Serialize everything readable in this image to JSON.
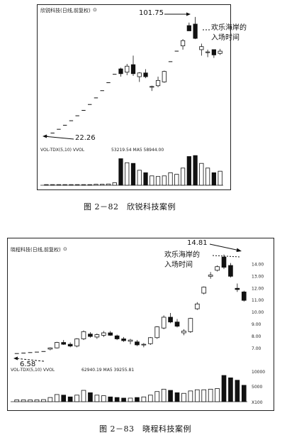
{
  "chart_data": [
    {
      "type": "candlestick",
      "title": "",
      "header": "欣锐科技(日线,前复权)",
      "indicator_label": "VOL-TDX(5,10) VVOL",
      "indicator_values": "53219.54 MA5 58944.00",
      "y_range": [
        20,
        105
      ],
      "vol_range": [
        0,
        100
      ],
      "annotations": {
        "low_label": "22.26",
        "high_label": "101.75",
        "entry_label_line1": "欢乐海岸的",
        "entry_label_line2": "入场时间"
      },
      "candles": [
        {
          "o": 22.3,
          "h": 22.3,
          "l": 22.3,
          "c": 22.3,
          "v": 2
        },
        {
          "o": 24.5,
          "h": 24.5,
          "l": 24.5,
          "c": 24.5,
          "v": 2
        },
        {
          "o": 27.0,
          "h": 27.0,
          "l": 27.0,
          "c": 27.0,
          "v": 2
        },
        {
          "o": 29.7,
          "h": 29.7,
          "l": 29.7,
          "c": 29.7,
          "v": 2
        },
        {
          "o": 32.7,
          "h": 32.7,
          "l": 32.7,
          "c": 32.7,
          "v": 2
        },
        {
          "o": 36.0,
          "h": 36.0,
          "l": 36.0,
          "c": 36.0,
          "v": 2
        },
        {
          "o": 39.6,
          "h": 39.6,
          "l": 39.6,
          "c": 39.6,
          "v": 2
        },
        {
          "o": 43.5,
          "h": 43.5,
          "l": 43.5,
          "c": 43.5,
          "v": 2
        },
        {
          "o": 47.9,
          "h": 47.9,
          "l": 47.9,
          "c": 47.9,
          "v": 3
        },
        {
          "o": 52.7,
          "h": 52.7,
          "l": 52.7,
          "c": 52.7,
          "v": 3
        },
        {
          "o": 58.0,
          "h": 58.0,
          "l": 58.0,
          "c": 58.0,
          "v": 4
        },
        {
          "o": 63.6,
          "h": 63.6,
          "l": 63.6,
          "c": 63.6,
          "v": 8
        },
        {
          "o": 67.2,
          "h": 68.0,
          "l": 62.0,
          "c": 64.0,
          "v": 85
        },
        {
          "o": 65.0,
          "h": 70.5,
          "l": 63.0,
          "c": 69.0,
          "v": 72
        },
        {
          "o": 70.0,
          "h": 76.0,
          "l": 62.5,
          "c": 64.0,
          "v": 70
        },
        {
          "o": 62.0,
          "h": 65.0,
          "l": 58.5,
          "c": 64.5,
          "v": 48
        },
        {
          "o": 64.5,
          "h": 67.0,
          "l": 61.0,
          "c": 62.0,
          "v": 40
        },
        {
          "o": 55.0,
          "h": 56.0,
          "l": 52.5,
          "c": 55.5,
          "v": 30
        },
        {
          "o": 56.0,
          "h": 62.0,
          "l": 55.0,
          "c": 59.5,
          "v": 28
        },
        {
          "o": 58.5,
          "h": 66.0,
          "l": 58.0,
          "c": 65.5,
          "v": 30
        },
        {
          "o": 72.0,
          "h": 72.0,
          "l": 72.0,
          "c": 72.0,
          "v": 40
        },
        {
          "o": 79.0,
          "h": 79.0,
          "l": 79.0,
          "c": 79.0,
          "v": 35
        },
        {
          "o": 82.5,
          "h": 87.0,
          "l": 80.0,
          "c": 86.0,
          "v": 55
        },
        {
          "o": 96.0,
          "h": 98.0,
          "l": 92.5,
          "c": 92.5,
          "v": 92
        },
        {
          "o": 97.0,
          "h": 101.75,
          "l": 87.0,
          "c": 87.5,
          "v": 95
        },
        {
          "o": 80.0,
          "h": 84.0,
          "l": 76.0,
          "c": 82.0,
          "v": 70
        },
        {
          "o": 78.0,
          "h": 80.0,
          "l": 75.0,
          "c": 78.5,
          "v": 55
        },
        {
          "o": 80.0,
          "h": 80.0,
          "l": 74.5,
          "c": 76.5,
          "v": 40
        },
        {
          "o": 77.5,
          "h": 80.5,
          "l": 76.5,
          "c": 79.0,
          "v": 45
        }
      ]
    },
    {
      "type": "candlestick",
      "title": "",
      "header": "晓程科技(日线,前复权)",
      "indicator_label": "VOL-TDX(5,10) VVOL",
      "indicator_values": "62940.19 MA5 39255.81",
      "y_range": [
        6.0,
        15.2
      ],
      "y_ticks": [
        "14.00",
        "13.00",
        "12.00",
        "11.00",
        "10.00",
        "9.00",
        "8.00",
        "7.00"
      ],
      "vol_ticks": [
        "10000",
        "5000",
        "X100"
      ],
      "vol_range": [
        0,
        100
      ],
      "annotations": {
        "low_label": "6.58",
        "high_label": "14.81",
        "entry_label_line1": "欢乐海岸的",
        "entry_label_line2": "入场时间"
      },
      "candles": [
        {
          "o": 6.58,
          "h": 6.58,
          "l": 6.58,
          "c": 6.58,
          "v": 6
        },
        {
          "o": 6.62,
          "h": 6.62,
          "l": 6.62,
          "c": 6.62,
          "v": 6
        },
        {
          "o": 6.66,
          "h": 6.66,
          "l": 6.66,
          "c": 6.66,
          "v": 6
        },
        {
          "o": 6.7,
          "h": 6.7,
          "l": 6.7,
          "c": 6.7,
          "v": 6
        },
        {
          "o": 6.75,
          "h": 6.75,
          "l": 6.75,
          "c": 6.75,
          "v": 7
        },
        {
          "o": 6.95,
          "h": 7.1,
          "l": 6.85,
          "c": 7.05,
          "v": 14
        },
        {
          "o": 7.05,
          "h": 7.55,
          "l": 7.0,
          "c": 7.5,
          "v": 24
        },
        {
          "o": 7.5,
          "h": 7.7,
          "l": 7.3,
          "c": 7.35,
          "v": 22
        },
        {
          "o": 7.35,
          "h": 7.5,
          "l": 7.1,
          "c": 7.2,
          "v": 16
        },
        {
          "o": 7.2,
          "h": 7.85,
          "l": 7.1,
          "c": 7.8,
          "v": 22
        },
        {
          "o": 7.8,
          "h": 8.5,
          "l": 7.7,
          "c": 8.4,
          "v": 38
        },
        {
          "o": 8.2,
          "h": 8.35,
          "l": 7.9,
          "c": 8.0,
          "v": 30
        },
        {
          "o": 7.95,
          "h": 8.25,
          "l": 7.8,
          "c": 8.15,
          "v": 22
        },
        {
          "o": 8.1,
          "h": 8.45,
          "l": 7.95,
          "c": 8.3,
          "v": 20
        },
        {
          "o": 8.3,
          "h": 8.45,
          "l": 8.05,
          "c": 8.1,
          "v": 16
        },
        {
          "o": 8.05,
          "h": 8.15,
          "l": 7.7,
          "c": 7.8,
          "v": 14
        },
        {
          "o": 7.8,
          "h": 7.95,
          "l": 7.55,
          "c": 7.65,
          "v": 12
        },
        {
          "o": 7.6,
          "h": 7.8,
          "l": 7.35,
          "c": 7.7,
          "v": 12
        },
        {
          "o": 7.55,
          "h": 7.7,
          "l": 7.2,
          "c": 7.3,
          "v": 14
        },
        {
          "o": 7.3,
          "h": 7.45,
          "l": 7.1,
          "c": 7.35,
          "v": 16
        },
        {
          "o": 7.4,
          "h": 7.95,
          "l": 7.3,
          "c": 7.9,
          "v": 22
        },
        {
          "o": 7.9,
          "h": 8.85,
          "l": 7.8,
          "c": 8.8,
          "v": 34
        },
        {
          "o": 8.7,
          "h": 9.75,
          "l": 8.6,
          "c": 9.6,
          "v": 42
        },
        {
          "o": 9.6,
          "h": 9.95,
          "l": 9.1,
          "c": 9.2,
          "v": 38
        },
        {
          "o": 9.2,
          "h": 9.45,
          "l": 8.75,
          "c": 8.85,
          "v": 30
        },
        {
          "o": 8.3,
          "h": 8.6,
          "l": 8.1,
          "c": 8.45,
          "v": 28
        },
        {
          "o": 8.4,
          "h": 9.55,
          "l": 8.3,
          "c": 9.5,
          "v": 36
        },
        {
          "o": 10.3,
          "h": 10.85,
          "l": 10.2,
          "c": 10.7,
          "v": 40
        },
        {
          "o": 11.6,
          "h": 12.15,
          "l": 11.5,
          "c": 12.1,
          "v": 40
        },
        {
          "o": 13.0,
          "h": 13.35,
          "l": 12.8,
          "c": 13.1,
          "v": 42
        },
        {
          "o": 13.5,
          "h": 13.9,
          "l": 13.4,
          "c": 13.8,
          "v": 44
        },
        {
          "o": 14.6,
          "h": 14.81,
          "l": 13.6,
          "c": 13.75,
          "v": 88
        },
        {
          "o": 13.9,
          "h": 14.1,
          "l": 12.9,
          "c": 13.0,
          "v": 80
        },
        {
          "o": 12.0,
          "h": 12.4,
          "l": 11.7,
          "c": 11.9,
          "v": 72
        },
        {
          "o": 11.7,
          "h": 11.8,
          "l": 10.9,
          "c": 11.0,
          "v": 55
        }
      ]
    }
  ],
  "captions": {
    "fig1": "图 2－82　欣锐科技案例",
    "fig2": "图 2－83　晓程科技案例"
  },
  "markers": {
    "circle_glyph": "⊙"
  }
}
